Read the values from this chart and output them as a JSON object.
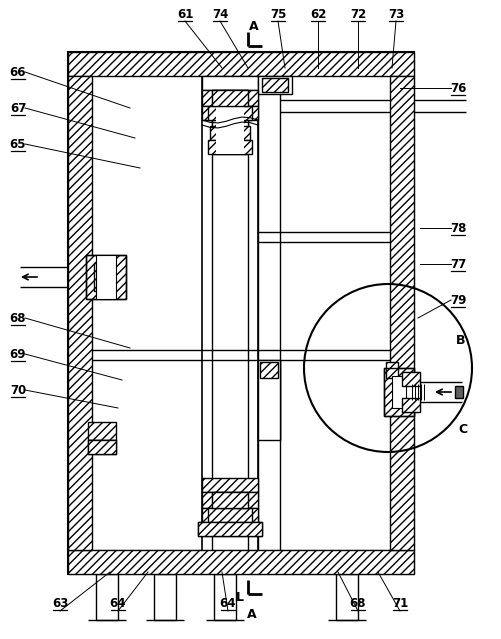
{
  "bg": "#ffffff",
  "lc": "#000000",
  "fig_w": 5.02,
  "fig_h": 6.39,
  "dpi": 100,
  "labels_top": [
    [
      "61",
      185,
      14,
      222,
      68
    ],
    [
      "74",
      220,
      14,
      248,
      68
    ],
    [
      "75",
      278,
      14,
      285,
      68
    ],
    [
      "62",
      318,
      14,
      318,
      68
    ],
    [
      "72",
      358,
      14,
      358,
      68
    ],
    [
      "73",
      396,
      14,
      392,
      68
    ]
  ],
  "labels_left": [
    [
      "66",
      18,
      72,
      130,
      108
    ],
    [
      "67",
      18,
      108,
      135,
      138
    ],
    [
      "65",
      18,
      144,
      140,
      168
    ],
    [
      "68",
      18,
      318,
      130,
      348
    ],
    [
      "69",
      18,
      354,
      122,
      380
    ],
    [
      "70",
      18,
      390,
      118,
      408
    ]
  ],
  "labels_right": [
    [
      "76",
      458,
      88,
      400,
      88
    ],
    [
      "78",
      458,
      228,
      420,
      228
    ],
    [
      "77",
      458,
      264,
      420,
      264
    ],
    [
      "79",
      458,
      300,
      418,
      318
    ]
  ],
  "labels_bot": [
    [
      "63",
      60,
      604,
      110,
      572
    ],
    [
      "64",
      118,
      604,
      148,
      572
    ],
    [
      "64",
      228,
      604,
      222,
      572
    ],
    [
      "68",
      358,
      604,
      338,
      572
    ],
    [
      "71",
      400,
      604,
      378,
      572
    ]
  ]
}
